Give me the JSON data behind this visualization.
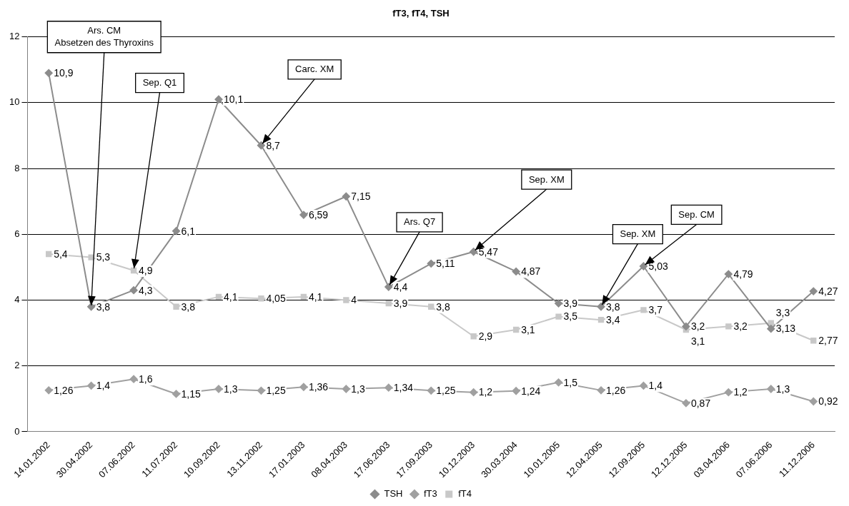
{
  "chart_data": {
    "type": "line",
    "title": "fT3, fT4, TSH",
    "categories": [
      "14.01.2002",
      "30.04.2002",
      "07.06.2002",
      "11.07.2002",
      "10.09.2002",
      "13.11.2002",
      "17.01.2003",
      "08.04.2003",
      "17.06.2003",
      "17.09.2003",
      "10.12.2003",
      "30.03.2004",
      "10.01.2005",
      "12.04.2005",
      "12.09.2005",
      "12.12.2005",
      "03.04.2006",
      "07.06.2006",
      "11.12.2006"
    ],
    "series": [
      {
        "name": "TSH",
        "color": "#8c8c8c",
        "marker": "diamond",
        "values": [
          10.9,
          3.8,
          4.3,
          6.1,
          10.1,
          8.7,
          6.59,
          7.15,
          4.4,
          5.11,
          5.47,
          4.87,
          3.9,
          3.8,
          5.03,
          3.2,
          4.79,
          3.13,
          4.27
        ],
        "value_labels": [
          "10,9",
          "3,8",
          "4,3",
          "6,1",
          "10,1",
          "8,7",
          "6,59",
          "7,15",
          "4,4",
          "5,11",
          "5,47",
          "4,87",
          "3,9",
          "3,8",
          "5,03",
          "3,2",
          "4,79",
          "3,13",
          "4,27"
        ]
      },
      {
        "name": "fT3",
        "color": "#a0a0a0",
        "marker": "diamond",
        "values": [
          1.26,
          1.4,
          1.6,
          1.15,
          1.3,
          1.25,
          1.36,
          1.3,
          1.34,
          1.25,
          1.2,
          1.24,
          1.5,
          1.26,
          1.4,
          0.87,
          1.2,
          1.3,
          0.92
        ],
        "value_labels": [
          "1,26",
          "1,4",
          "1,6",
          "1,15",
          "1,3",
          "1,25",
          "1,36",
          "1,3",
          "1,34",
          "1,25",
          "1,2",
          "1,24",
          "1,5",
          "1,26",
          "1,4",
          "0,87",
          "1,2",
          "1,3",
          "0,92"
        ]
      },
      {
        "name": "fT4",
        "color": "#c8c8c8",
        "marker": "square",
        "values": [
          5.4,
          5.3,
          4.9,
          3.8,
          4.1,
          4.05,
          4.1,
          4,
          3.9,
          3.8,
          2.9,
          3.1,
          3.5,
          3.4,
          3.7,
          3.1,
          3.2,
          3.3,
          2.77
        ],
        "value_labels": [
          "5,4",
          "5,3",
          "4,9",
          "3,8",
          "4,1",
          "4,05",
          "4,1",
          "4",
          "3,9",
          "3,8",
          "2,9",
          "3,1",
          "3,5",
          "3,4",
          "3,7",
          "3,1",
          "3,2",
          "3,3",
          "2,77"
        ]
      }
    ],
    "ylim": [
      0,
      12
    ],
    "yticks": [
      0,
      2,
      4,
      6,
      8,
      10,
      12
    ],
    "grid": "y",
    "legend": "bottom",
    "annotations": [
      {
        "text": "Ars. CM\nAbsetzen des Thyroxins",
        "x": "30.04.2002",
        "y": 3.8
      },
      {
        "text": "Sep. Q1",
        "x": "07.06.2002",
        "y": 4.9
      },
      {
        "text": "Carc. XM",
        "x": "13.11.2002",
        "y": 8.7
      },
      {
        "text": "Ars. Q7",
        "x": "17.06.2003",
        "y": 4.4
      },
      {
        "text": "Sep. XM",
        "x": "10.12.2003",
        "y": 5.47
      },
      {
        "text": "Sep. XM",
        "x": "12.04.2005",
        "y": 3.8
      },
      {
        "text": "Sep. CM",
        "x": "12.09.2005",
        "y": 5.03
      }
    ]
  }
}
